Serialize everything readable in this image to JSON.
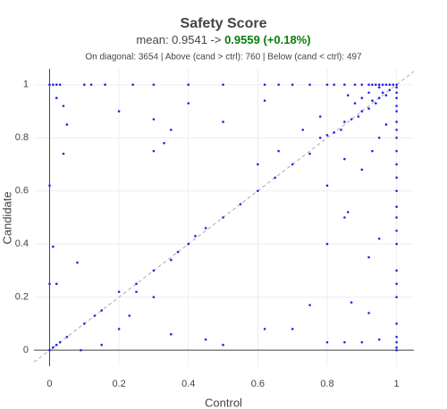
{
  "chart_data": {
    "type": "scatter",
    "title": "Safety Score",
    "subtitle": {
      "prefix": "mean: 0.9541 -> ",
      "highlight": "0.9559 (+0.18%)",
      "highlight_color": "#0a7d0a"
    },
    "annotation": "On diagonal: 3654 | Above (cand > ctrl): 760 | Below (cand < ctrl): 497",
    "x_label": "Control",
    "y_label": "Candidate",
    "xlim": [
      -0.045,
      1.05
    ],
    "ylim": [
      -0.06,
      1.06
    ],
    "xticks": [
      0,
      0.2,
      0.4,
      0.6,
      0.8,
      1
    ],
    "yticks": [
      0,
      0.2,
      0.4,
      0.6,
      0.8,
      1
    ],
    "grid": true,
    "color": "#2222ee",
    "x": [
      1,
      0.99,
      0.98,
      0.97,
      0.96,
      0.95,
      0.94,
      0.93,
      0.92,
      0.9,
      0.88,
      0.85,
      0.82,
      0.8,
      0.75,
      0.7,
      0.66,
      0.62,
      0.5,
      0.4,
      0.3,
      0.24,
      0.16,
      0.12,
      0.1,
      0.03,
      0.02,
      0.01,
      0,
      1,
      1,
      1,
      1,
      1,
      1,
      1,
      1,
      1,
      1,
      1,
      1,
      1,
      1,
      1,
      1,
      1,
      1,
      1,
      1,
      1,
      1,
      1,
      1,
      0.98,
      0.97,
      0.96,
      0.95,
      0.94,
      0.93,
      0.92,
      0.9,
      0.89,
      0.87,
      0.85,
      0.84,
      0.82,
      0.8,
      0.78,
      0.75,
      0.7,
      0.65,
      0.6,
      0.55,
      0.5,
      0.45,
      0.42,
      0.4,
      0.37,
      0.35,
      0.3,
      0.25,
      0.2,
      0.15,
      0.13,
      0.1,
      0.05,
      0.03,
      0.02,
      0.01,
      0,
      0.95,
      0.92,
      0.9,
      0.88,
      0.86,
      0.05,
      0.02,
      0.04,
      0.3,
      0.2,
      0.33,
      0.4,
      0.5,
      0.78,
      0.62,
      0.73,
      0.04,
      0.3,
      0.35,
      0,
      0.01,
      0.02,
      0,
      0.25,
      0.2,
      0.6,
      0.66,
      0.97,
      0.95,
      0.93,
      0.9,
      0.85,
      0.8,
      0.85,
      0.86,
      0.8,
      0.95,
      0.92,
      0.8,
      0.85,
      0.9,
      0.95,
      0.7,
      0.5,
      0.45,
      0.35,
      0.15,
      0.08,
      0.92,
      0.87,
      0.75,
      0.62,
      0.09,
      0.23,
      0.3
    ],
    "values": [
      1,
      1,
      1,
      1,
      1,
      1,
      1,
      1,
      1,
      1,
      1,
      1,
      1,
      1,
      1,
      1,
      1,
      1,
      1,
      1,
      1,
      1,
      1,
      1,
      1,
      1,
      1,
      1,
      1,
      0.99,
      0.97,
      0.95,
      0.92,
      0.9,
      0.86,
      0.83,
      0.8,
      0.75,
      0.7,
      0.65,
      0.6,
      0.54,
      0.5,
      0.45,
      0.4,
      0.3,
      0.25,
      0.2,
      0.1,
      0.05,
      0.03,
      0.01,
      0,
      0.98,
      0.96,
      0.97,
      0.95,
      0.93,
      0.94,
      0.91,
      0.9,
      0.88,
      0.87,
      0.86,
      0.83,
      0.82,
      0.81,
      0.8,
      0.74,
      0.7,
      0.65,
      0.6,
      0.55,
      0.5,
      0.46,
      0.43,
      0.4,
      0.37,
      0.34,
      0.3,
      0.25,
      0.22,
      0.15,
      0.13,
      0.1,
      0.05,
      0.03,
      0.02,
      0.01,
      0,
      0.99,
      0.97,
      0.95,
      0.93,
      0.96,
      0.85,
      0.95,
      0.92,
      0.87,
      0.9,
      0.78,
      0.93,
      0.86,
      0.88,
      0.94,
      0.83,
      0.74,
      0.75,
      0.83,
      0.62,
      0.39,
      0.25,
      0.25,
      0.22,
      0.08,
      0.7,
      0.75,
      0.85,
      0.8,
      0.75,
      0.68,
      0.72,
      0.62,
      0.5,
      0.52,
      0.4,
      0.42,
      0.14,
      0.03,
      0.03,
      0.03,
      0.04,
      0.08,
      0.02,
      0.04,
      0.06,
      0.02,
      0.33,
      0.35,
      0.18,
      0.17,
      0.08,
      0,
      0.13,
      0.2
    ]
  }
}
